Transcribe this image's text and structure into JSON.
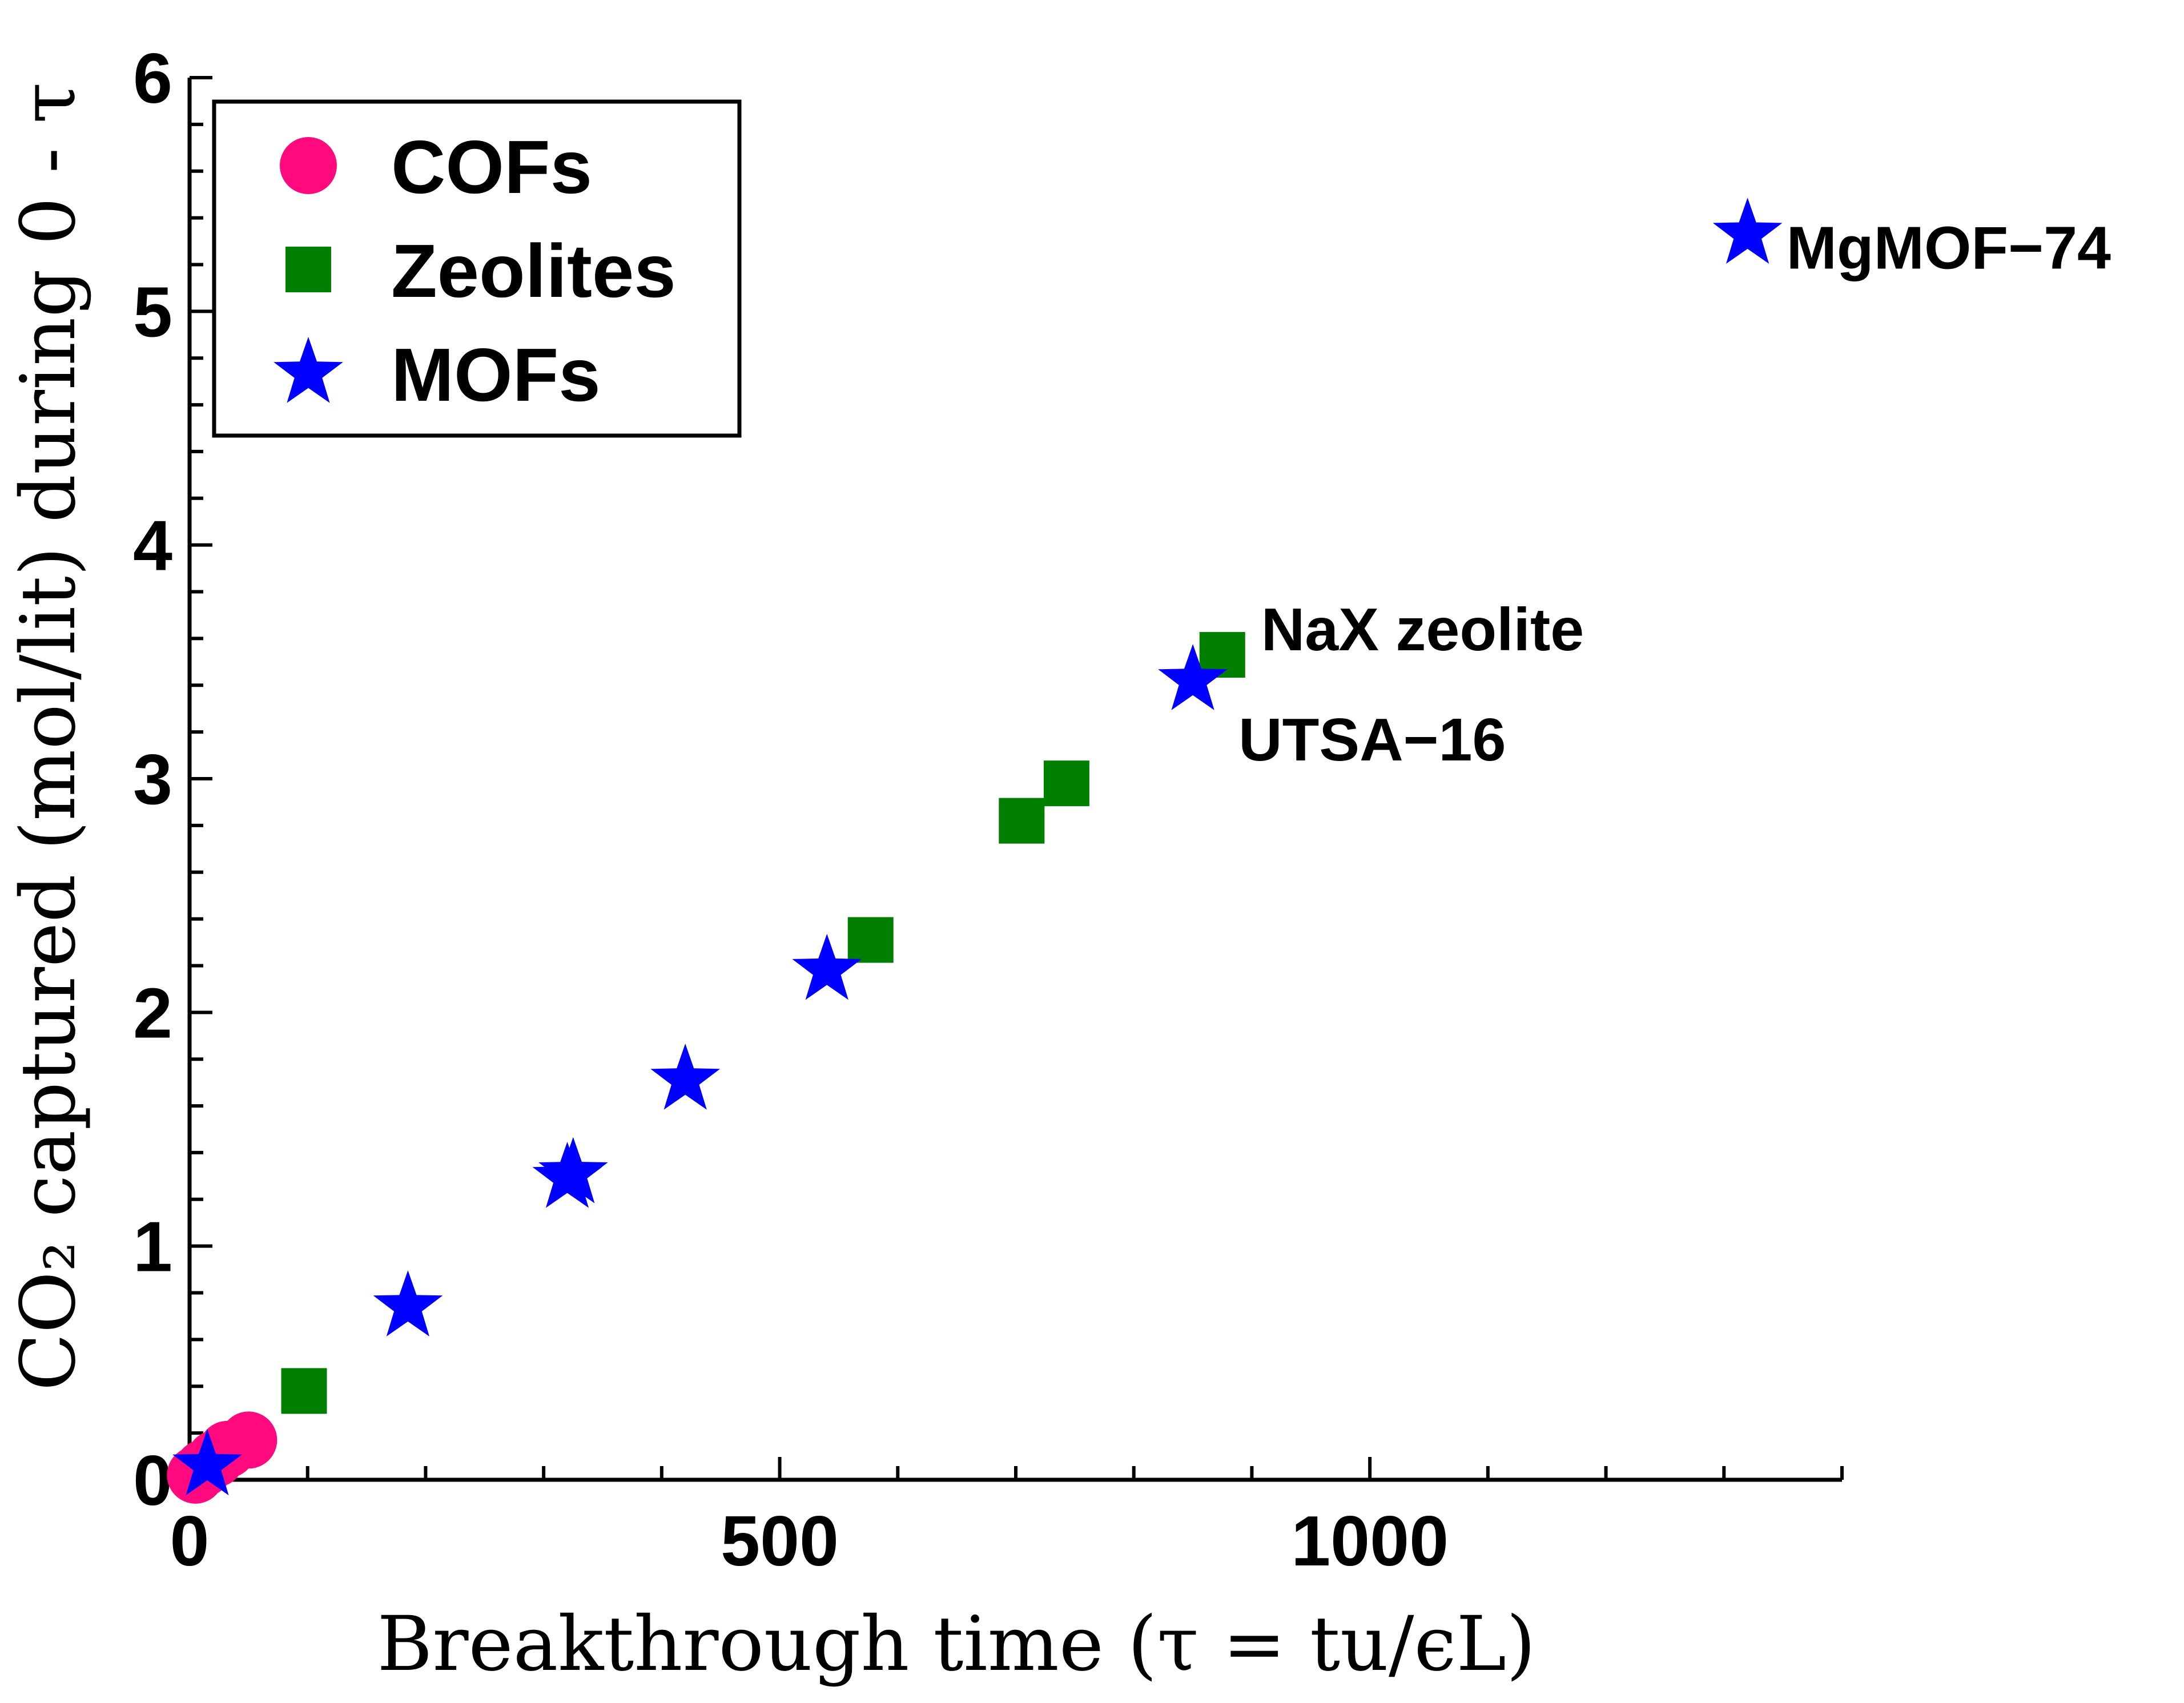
{
  "chart_data": {
    "type": "scatter",
    "xlabel": "Breakthrough time (τ = tu/ϵL)",
    "ylabel": "CO₂ captured (mol/lit) during 0 - τ",
    "xlim": [
      0,
      1400
    ],
    "ylim": [
      0,
      6
    ],
    "x_ticks": [
      0,
      500,
      1000
    ],
    "y_ticks": [
      0,
      1,
      2,
      3,
      4,
      5,
      6
    ],
    "grid": false,
    "legend_position": "top-left",
    "series": [
      {
        "name": "COFs",
        "marker": "circle",
        "color": "#ff0a7e",
        "points": [
          [
            5,
            0.02
          ],
          [
            12,
            0.05
          ],
          [
            22,
            0.09
          ],
          [
            32,
            0.13
          ],
          [
            50,
            0.17
          ]
        ]
      },
      {
        "name": "Zeolites",
        "marker": "square",
        "color": "#007f00",
        "points": [
          [
            97,
            0.38
          ],
          [
            577,
            2.31
          ],
          [
            705,
            2.82
          ],
          [
            743,
            2.98
          ],
          [
            875,
            3.53
          ]
        ]
      },
      {
        "name": "MOFs",
        "marker": "star",
        "color": "#0000ff",
        "points": [
          [
            15,
            0.06
          ],
          [
            185,
            0.74
          ],
          [
            320,
            1.29
          ],
          [
            325,
            1.31
          ],
          [
            420,
            1.71
          ],
          [
            540,
            2.18
          ],
          [
            850,
            3.42
          ],
          [
            1320,
            5.33
          ]
        ]
      }
    ],
    "annotations": [
      {
        "text": "MgMOF−74",
        "x": 1320,
        "y": 5.33
      },
      {
        "text": "NaX zeolite",
        "x": 875,
        "y": 3.53
      },
      {
        "text": "UTSA−16",
        "x": 850,
        "y": 3.42
      }
    ]
  }
}
